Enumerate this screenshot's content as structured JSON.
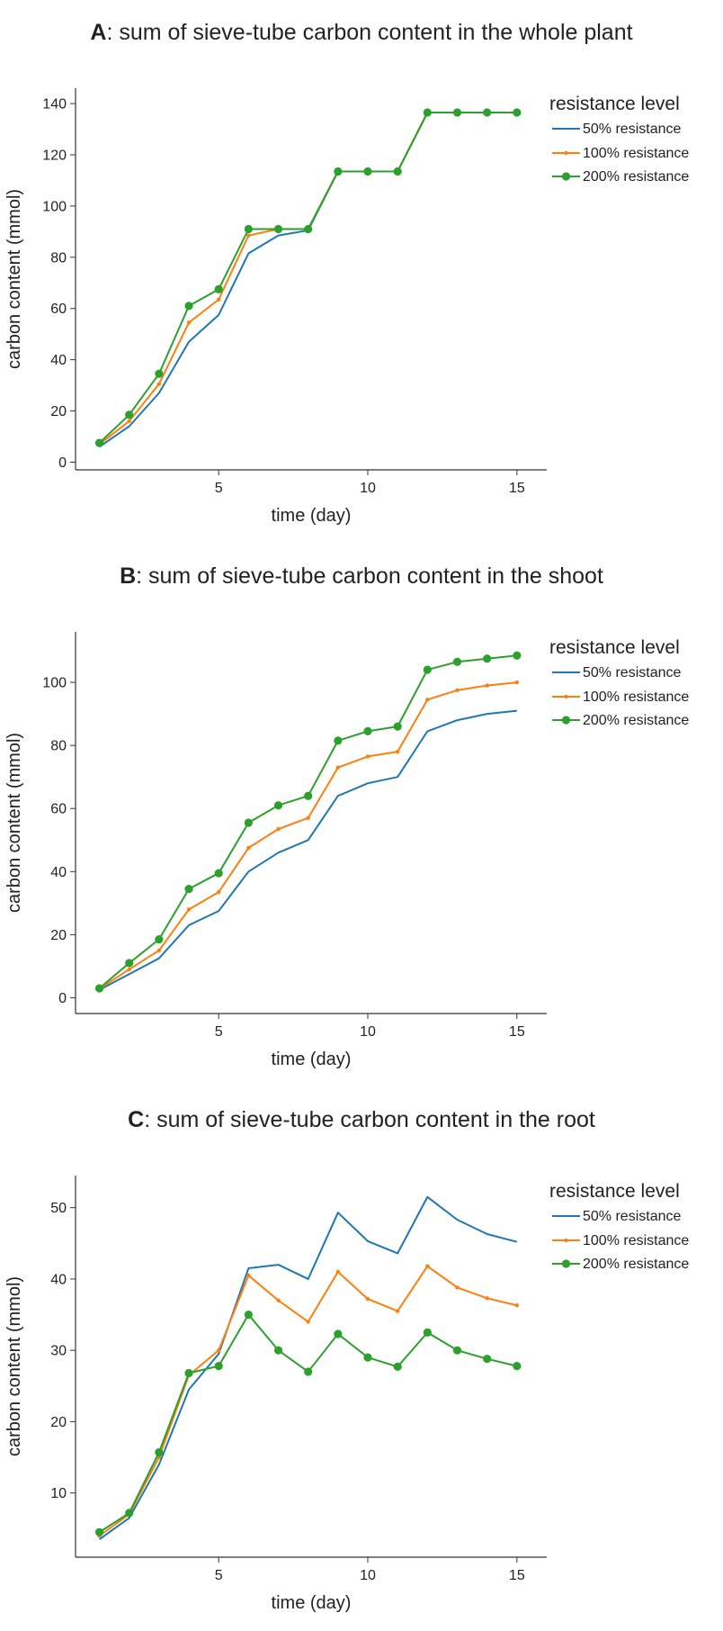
{
  "chart_data": [
    {
      "type": "line",
      "title_prefix": "A",
      "title": ": sum of sieve-tube carbon content in the whole plant",
      "xlabel": "time (day)",
      "ylabel": "carbon content (mmol)",
      "xlim": [
        0.2,
        16
      ],
      "ylim": [
        -3,
        146
      ],
      "xticks": [
        5,
        10,
        15
      ],
      "yticks": [
        0,
        20,
        40,
        60,
        80,
        100,
        120,
        140
      ],
      "grid": false,
      "legend": {
        "title": "resistance level",
        "placement": "top-right, outside plot"
      },
      "x": [
        1,
        2,
        3,
        4,
        5,
        6,
        7,
        8,
        9,
        10,
        11,
        12,
        13,
        14,
        15
      ],
      "series": [
        {
          "name": "50% resistance",
          "color": "#1f77b4",
          "marker": "none",
          "values": [
            6,
            14,
            27,
            47,
            57.5,
            81.5,
            88.5,
            90.5,
            113.5,
            113.5,
            113.5,
            136.5,
            136.5,
            136.5,
            136.5
          ]
        },
        {
          "name": "100% resistance",
          "color": "#ff7f0e",
          "marker": "small",
          "values": [
            7,
            16,
            30.5,
            54.5,
            63.5,
            88.5,
            91,
            91,
            113.5,
            113.5,
            113.5,
            136.5,
            136.5,
            136.5,
            136.5
          ]
        },
        {
          "name": "200% resistance",
          "color": "#2ca02c",
          "marker": "large",
          "values": [
            7.5,
            18.5,
            34.5,
            61,
            67.5,
            91,
            91,
            91,
            113.5,
            113.5,
            113.5,
            136.5,
            136.5,
            136.5,
            136.5
          ]
        }
      ]
    },
    {
      "type": "line",
      "title_prefix": "B",
      "title": ": sum of sieve-tube carbon content in the shoot",
      "xlabel": "time (day)",
      "ylabel": "carbon content (mmol)",
      "xlim": [
        0.2,
        16
      ],
      "ylim": [
        -5,
        116
      ],
      "xticks": [
        5,
        10,
        15
      ],
      "yticks": [
        0,
        20,
        40,
        60,
        80,
        100
      ],
      "grid": false,
      "legend": {
        "title": "resistance level",
        "placement": "top-right, outside plot"
      },
      "x": [
        1,
        2,
        3,
        4,
        5,
        6,
        7,
        8,
        9,
        10,
        11,
        12,
        13,
        14,
        15
      ],
      "series": [
        {
          "name": "50% resistance",
          "color": "#1f77b4",
          "marker": "none",
          "values": [
            2.5,
            7.5,
            12.5,
            23,
            27.5,
            40,
            46,
            50,
            64,
            68,
            70,
            84.5,
            88,
            90,
            91
          ]
        },
        {
          "name": "100% resistance",
          "color": "#ff7f0e",
          "marker": "small",
          "values": [
            2.8,
            9,
            15,
            28,
            33.5,
            47.5,
            53.5,
            57,
            73,
            76.5,
            78,
            94.5,
            97.5,
            99,
            100
          ]
        },
        {
          "name": "200% resistance",
          "color": "#2ca02c",
          "marker": "large",
          "values": [
            3,
            11,
            18.5,
            34.5,
            39.5,
            55.5,
            61,
            64,
            81.5,
            84.5,
            86,
            104,
            106.5,
            107.5,
            108.5
          ]
        }
      ]
    },
    {
      "type": "line",
      "title_prefix": "C",
      "title": ": sum of sieve-tube carbon content in the root",
      "xlabel": "time (day)",
      "ylabel": "carbon content (mmol)",
      "xlim": [
        0.2,
        16
      ],
      "ylim": [
        1,
        54.5
      ],
      "xticks": [
        5,
        10,
        15
      ],
      "yticks": [
        10,
        20,
        30,
        40,
        50
      ],
      "grid": false,
      "legend": {
        "title": "resistance level",
        "placement": "top-right, outside plot"
      },
      "x": [
        1,
        2,
        3,
        4,
        5,
        6,
        7,
        8,
        9,
        10,
        11,
        12,
        13,
        14,
        15
      ],
      "series": [
        {
          "name": "50% resistance",
          "color": "#1f77b4",
          "marker": "none",
          "values": [
            3.5,
            6.5,
            14,
            24.5,
            29.5,
            41.5,
            42,
            40,
            49.3,
            45.3,
            43.6,
            51.5,
            48.3,
            46.3,
            45.2
          ]
        },
        {
          "name": "100% resistance",
          "color": "#ff7f0e",
          "marker": "small",
          "values": [
            4,
            7,
            15,
            26.5,
            30,
            40.5,
            37,
            34,
            41,
            37.2,
            35.5,
            41.8,
            38.8,
            37.3,
            36.3
          ]
        },
        {
          "name": "200% resistance",
          "color": "#2ca02c",
          "marker": "large",
          "values": [
            4.5,
            7.2,
            15.7,
            26.8,
            27.8,
            35,
            30,
            27,
            32.3,
            29,
            27.7,
            32.5,
            30,
            28.8,
            27.8
          ]
        }
      ]
    }
  ]
}
